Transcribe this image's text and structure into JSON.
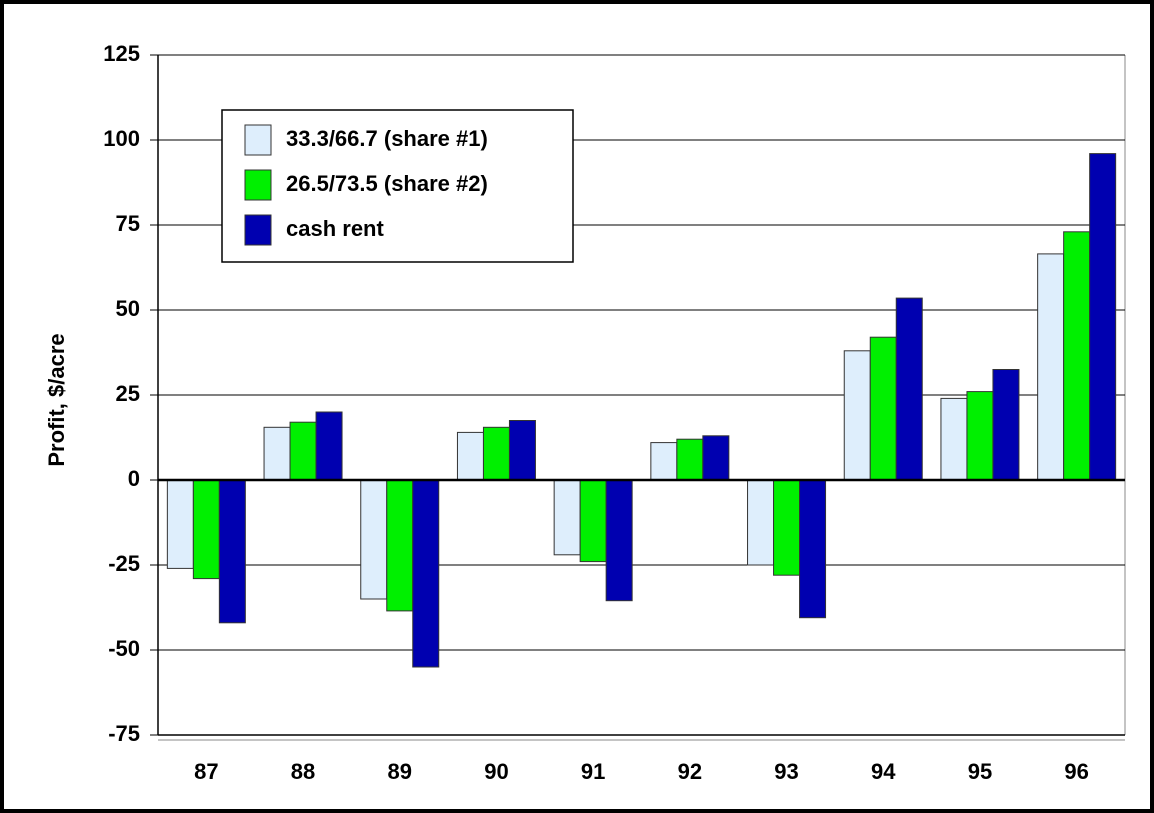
{
  "chart_data": {
    "type": "bar",
    "y_label": "Profit, $/acre",
    "categories": [
      "87",
      "88",
      "89",
      "90",
      "91",
      "92",
      "93",
      "94",
      "95",
      "96"
    ],
    "series": [
      {
        "name": "33.3/66.7 (share #1)",
        "color": "#deeefc",
        "values": [
          -26,
          15.5,
          -35,
          14,
          -22,
          11,
          -25,
          38,
          24,
          66.5
        ]
      },
      {
        "name": "26.5/73.5 (share #2)",
        "color": "#00f000",
        "values": [
          -29,
          17,
          -38.5,
          15.5,
          -24,
          12,
          -28,
          42,
          26,
          73
        ]
      },
      {
        "name": "cash rent",
        "color": "#0000b0",
        "values": [
          -42,
          20,
          -55,
          17.5,
          -35.5,
          13,
          -40.5,
          53.5,
          32.5,
          96
        ]
      }
    ],
    "ylim": [
      -75,
      125
    ],
    "yticks": [
      -75,
      -50,
      -25,
      0,
      25,
      50,
      75,
      100,
      125
    ],
    "grid": true
  }
}
